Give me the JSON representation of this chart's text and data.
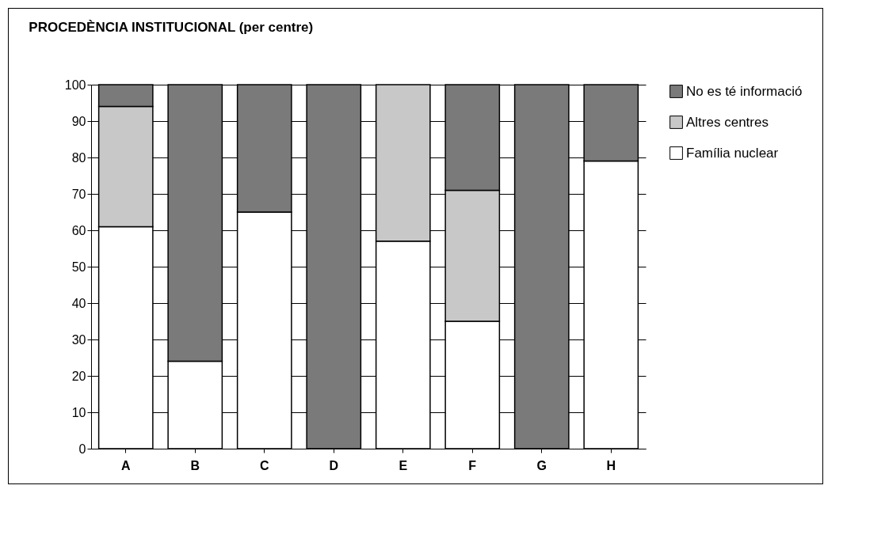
{
  "chart_data": {
    "type": "bar",
    "title": "PROCEDÈNCIA INSTITUCIONAL (per centre)",
    "categories": [
      "A",
      "B",
      "C",
      "D",
      "E",
      "F",
      "G",
      "H"
    ],
    "stacked": true,
    "ylim": [
      0,
      100
    ],
    "yticks": [
      0,
      10,
      20,
      30,
      40,
      50,
      60,
      70,
      80,
      90,
      100
    ],
    "grid": "y",
    "legend": "right",
    "series": [
      {
        "name": "Família nuclear",
        "color": "#ffffff",
        "values": [
          61,
          24,
          65,
          0,
          57,
          35,
          0,
          79
        ]
      },
      {
        "name": "Altres centres",
        "color": "#c8c8c8",
        "values": [
          33,
          0,
          0,
          0,
          43,
          36,
          0,
          0
        ]
      },
      {
        "name": "No es té informació",
        "color": "#7a7a7a",
        "values": [
          6,
          76,
          35,
          100,
          0,
          29,
          100,
          21
        ]
      }
    ]
  }
}
